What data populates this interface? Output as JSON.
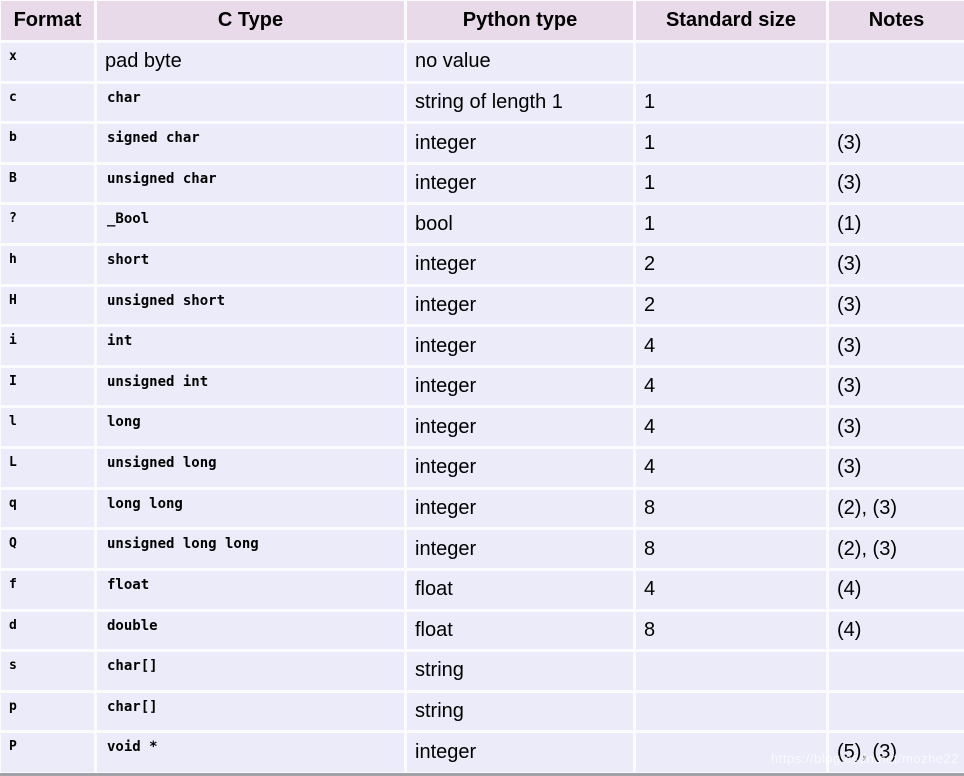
{
  "colors": {
    "header_bg": "#e8dae8",
    "row_bg": "#ebebf9",
    "grid_line": "#fbfafd",
    "bottom_border": "#a1a1aa",
    "text": "#000000"
  },
  "table": {
    "columns": [
      "Format",
      "C Type",
      "Python type",
      "Standard size",
      "Notes"
    ],
    "rows": [
      {
        "format": "x",
        "c_type": "pad byte",
        "c_type_code": false,
        "python_type": "no value",
        "standard_size": "",
        "notes": ""
      },
      {
        "format": "c",
        "c_type": "char",
        "c_type_code": true,
        "python_type": "string of length 1",
        "standard_size": "1",
        "notes": ""
      },
      {
        "format": "b",
        "c_type": "signed char",
        "c_type_code": true,
        "python_type": "integer",
        "standard_size": "1",
        "notes": "(3)"
      },
      {
        "format": "B",
        "c_type": "unsigned char",
        "c_type_code": true,
        "python_type": "integer",
        "standard_size": "1",
        "notes": "(3)"
      },
      {
        "format": "?",
        "c_type": "_Bool",
        "c_type_code": true,
        "python_type": "bool",
        "standard_size": "1",
        "notes": "(1)"
      },
      {
        "format": "h",
        "c_type": "short",
        "c_type_code": true,
        "python_type": "integer",
        "standard_size": "2",
        "notes": "(3)"
      },
      {
        "format": "H",
        "c_type": "unsigned short",
        "c_type_code": true,
        "python_type": "integer",
        "standard_size": "2",
        "notes": "(3)"
      },
      {
        "format": "i",
        "c_type": "int",
        "c_type_code": true,
        "python_type": "integer",
        "standard_size": "4",
        "notes": "(3)"
      },
      {
        "format": "I",
        "c_type": "unsigned int",
        "c_type_code": true,
        "python_type": "integer",
        "standard_size": "4",
        "notes": "(3)"
      },
      {
        "format": "l",
        "c_type": "long",
        "c_type_code": true,
        "python_type": "integer",
        "standard_size": "4",
        "notes": "(3)"
      },
      {
        "format": "L",
        "c_type": "unsigned long",
        "c_type_code": true,
        "python_type": "integer",
        "standard_size": "4",
        "notes": "(3)"
      },
      {
        "format": "q",
        "c_type": "long long",
        "c_type_code": true,
        "python_type": "integer",
        "standard_size": "8",
        "notes": "(2), (3)"
      },
      {
        "format": "Q",
        "c_type": "unsigned long long",
        "c_type_code": true,
        "python_type": "integer",
        "standard_size": "8",
        "notes": "(2), (3)"
      },
      {
        "format": "f",
        "c_type": "float",
        "c_type_code": true,
        "python_type": "float",
        "standard_size": "4",
        "notes": "(4)"
      },
      {
        "format": "d",
        "c_type": "double",
        "c_type_code": true,
        "python_type": "float",
        "standard_size": "8",
        "notes": "(4)"
      },
      {
        "format": "s",
        "c_type": "char[]",
        "c_type_code": true,
        "python_type": "string",
        "standard_size": "",
        "notes": ""
      },
      {
        "format": "p",
        "c_type": "char[]",
        "c_type_code": true,
        "python_type": "string",
        "standard_size": "",
        "notes": ""
      },
      {
        "format": "P",
        "c_type": "void *",
        "c_type_code": true,
        "python_type": "integer",
        "standard_size": "",
        "notes": "(5), (3)"
      }
    ],
    "watermark": "https://blog.csdn.net/mozhe22"
  }
}
